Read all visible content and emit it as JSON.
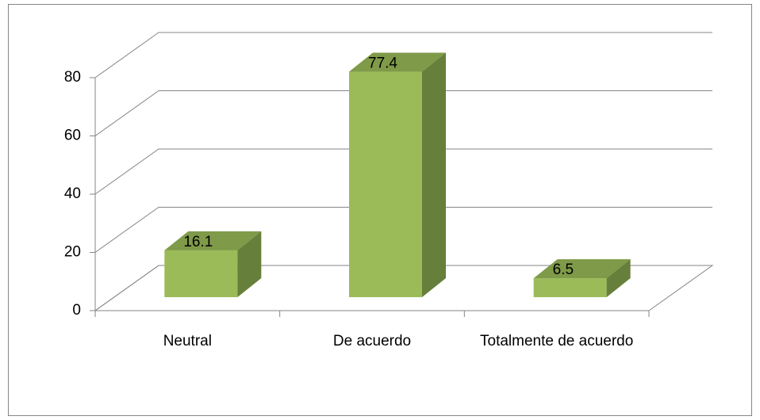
{
  "chart_data": {
    "type": "bar3d",
    "categories": [
      "Neutral",
      "De acuerdo",
      "Totalmente de acuerdo"
    ],
    "values": [
      16.1,
      77.4,
      6.5
    ],
    "color": "#9bbb59",
    "ylim": [
      0,
      80
    ],
    "yticks": [
      0,
      20,
      40,
      60,
      80
    ],
    "grid": true
  }
}
